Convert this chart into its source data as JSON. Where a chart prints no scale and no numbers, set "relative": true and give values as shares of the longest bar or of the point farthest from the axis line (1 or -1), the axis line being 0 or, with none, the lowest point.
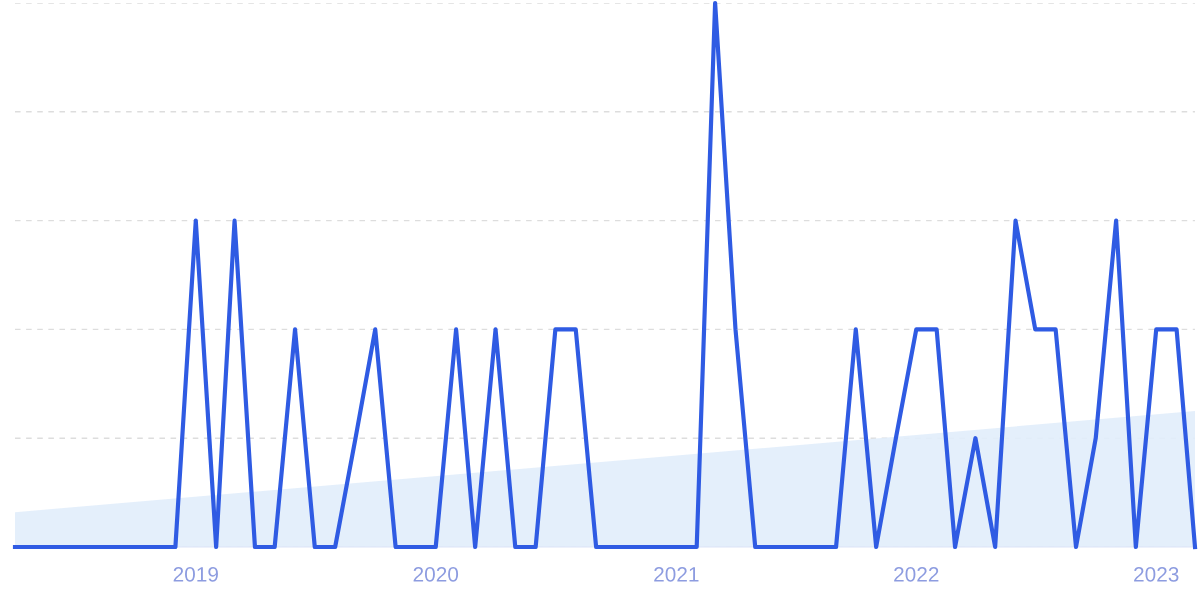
{
  "chart_data": {
    "type": "line",
    "relative": true,
    "grid": "y",
    "x": [
      "2018-04",
      "2018-05",
      "2018-06",
      "2018-07",
      "2018-08",
      "2018-09",
      "2018-10",
      "2018-11",
      "2018-12",
      "2019-01",
      "2019-02",
      "2019-03",
      "2019-04",
      "2019-05",
      "2019-06",
      "2019-07",
      "2019-08",
      "2019-09",
      "2019-10",
      "2019-11",
      "2019-12",
      "2020-01",
      "2020-02",
      "2020-03",
      "2020-04",
      "2020-05",
      "2020-06",
      "2020-07",
      "2020-08",
      "2020-09",
      "2020-10",
      "2020-11",
      "2020-12",
      "2021-01",
      "2021-02",
      "2021-03",
      "2021-04",
      "2021-05",
      "2021-06",
      "2021-07",
      "2021-08",
      "2021-09",
      "2021-10",
      "2021-11",
      "2021-12",
      "2022-01",
      "2022-02",
      "2022-03",
      "2022-04",
      "2022-05",
      "2022-06",
      "2022-07",
      "2022-08",
      "2022-09",
      "2022-10",
      "2022-11",
      "2022-12",
      "2023-01",
      "2023-02",
      "2023-03"
    ],
    "xlim": [
      "2018-04",
      "2023-03"
    ],
    "xticks": [
      {
        "value": "2019-01",
        "label": "2019"
      },
      {
        "value": "2020-01",
        "label": "2020"
      },
      {
        "value": "2021-01",
        "label": "2021"
      },
      {
        "value": "2022-01",
        "label": "2022"
      },
      {
        "value": "2023-01",
        "label": "2023"
      }
    ],
    "series": [
      {
        "type": "area",
        "color": "#e1edfb",
        "x": [
          "2018-04",
          "2023-03"
        ],
        "values": [
          0.064,
          0.25
        ]
      },
      {
        "color": "#2f5be3",
        "values": [
          0,
          0,
          0,
          0,
          0,
          0,
          0,
          0,
          0,
          0.6,
          0,
          0.6,
          0,
          0,
          0.4,
          0,
          0,
          0.2,
          0.4,
          0,
          0,
          0,
          0.4,
          0,
          0.4,
          0,
          0,
          0.4,
          0.4,
          0,
          0,
          0,
          0,
          0,
          0,
          1,
          0.4,
          0,
          0,
          0,
          0,
          0,
          0.4,
          0,
          0.2,
          0.4,
          0.4,
          0,
          0.2,
          0,
          0.6,
          0.4,
          0.4,
          0,
          0.2,
          0.6,
          0,
          0.4,
          0.4,
          0
        ]
      }
    ]
  }
}
